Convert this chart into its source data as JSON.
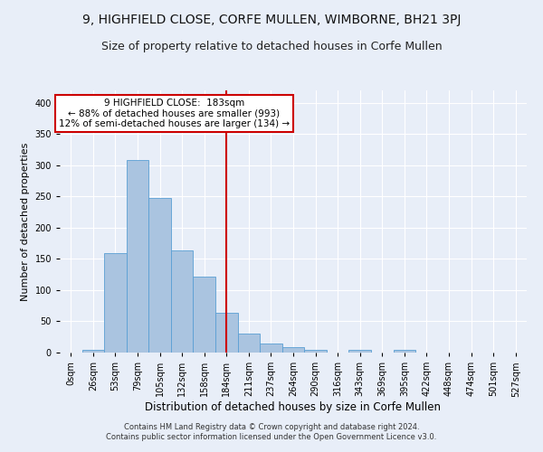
{
  "title": "9, HIGHFIELD CLOSE, CORFE MULLEN, WIMBORNE, BH21 3PJ",
  "subtitle": "Size of property relative to detached houses in Corfe Mullen",
  "xlabel": "Distribution of detached houses by size in Corfe Mullen",
  "ylabel": "Number of detached properties",
  "footer_line1": "Contains HM Land Registry data © Crown copyright and database right 2024.",
  "footer_line2": "Contains public sector information licensed under the Open Government Licence v3.0.",
  "bin_labels": [
    "0sqm",
    "26sqm",
    "53sqm",
    "79sqm",
    "105sqm",
    "132sqm",
    "158sqm",
    "184sqm",
    "211sqm",
    "237sqm",
    "264sqm",
    "290sqm",
    "316sqm",
    "343sqm",
    "369sqm",
    "395sqm",
    "422sqm",
    "448sqm",
    "474sqm",
    "501sqm",
    "527sqm"
  ],
  "bar_heights": [
    0,
    5,
    160,
    308,
    248,
    163,
    122,
    64,
    30,
    15,
    8,
    4,
    0,
    4,
    0,
    4,
    0,
    0,
    0,
    0,
    0
  ],
  "bar_color": "#aac4e0",
  "bar_edgecolor": "#5a9fd4",
  "property_bin_index": 7,
  "annotation_text_line1": "9 HIGHFIELD CLOSE:  183sqm",
  "annotation_text_line2": "← 88% of detached houses are smaller (993)",
  "annotation_text_line3": "12% of semi-detached houses are larger (134) →",
  "vline_color": "#cc0000",
  "annotation_box_edgecolor": "#cc0000",
  "ylim": [
    0,
    420
  ],
  "yticks": [
    0,
    50,
    100,
    150,
    200,
    250,
    300,
    350,
    400
  ],
  "background_color": "#e8eef8",
  "plot_background": "#e8eef8",
  "grid_color": "#ffffff",
  "title_fontsize": 10,
  "subtitle_fontsize": 9,
  "xlabel_fontsize": 8.5,
  "ylabel_fontsize": 8,
  "tick_fontsize": 7,
  "annotation_fontsize": 7.5,
  "footer_fontsize": 6
}
